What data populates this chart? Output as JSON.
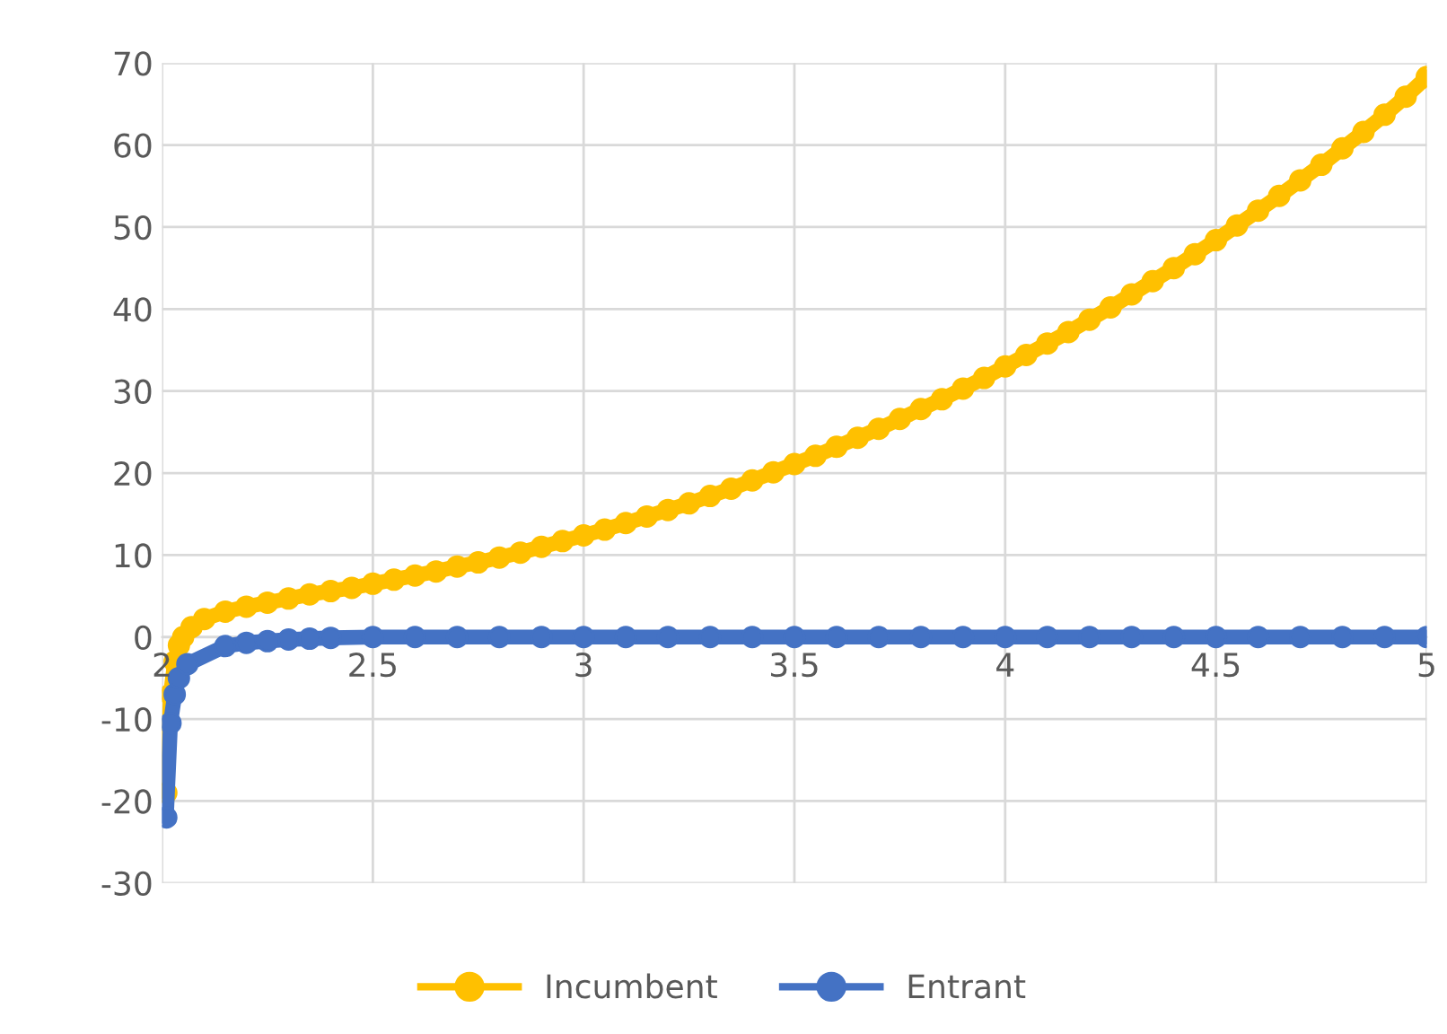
{
  "chart_data": {
    "type": "line",
    "xlim": [
      2,
      5
    ],
    "xticks": [
      2,
      2.5,
      3,
      3.5,
      4,
      4.5,
      5
    ],
    "ylim": [
      -30,
      70
    ],
    "yticks": [
      -30,
      -20,
      -10,
      0,
      10,
      20,
      30,
      40,
      50,
      60,
      70
    ],
    "grid": true,
    "legend": "bottom",
    "marker": "circle",
    "line_style": "solid",
    "series": [
      {
        "name": "Incumbent",
        "color": "#ffc000",
        "x": [
          2.01,
          2.02,
          2.03,
          2.04,
          2.05,
          2.07,
          2.1,
          2.15,
          2.2,
          2.25,
          2.3,
          2.35,
          2.4,
          2.45,
          2.5,
          2.55,
          2.6,
          2.65,
          2.7,
          2.75,
          2.8,
          2.85,
          2.9,
          2.95,
          3.0,
          3.05,
          3.1,
          3.15,
          3.2,
          3.25,
          3.3,
          3.35,
          3.4,
          3.45,
          3.5,
          3.55,
          3.6,
          3.65,
          3.7,
          3.75,
          3.8,
          3.85,
          3.9,
          3.95,
          4.0,
          4.05,
          4.1,
          4.15,
          4.2,
          4.25,
          4.3,
          4.35,
          4.4,
          4.45,
          4.5,
          4.55,
          4.6,
          4.65,
          4.7,
          4.75,
          4.8,
          4.85,
          4.9,
          4.95,
          5.0
        ],
        "values": [
          -19,
          -7,
          -3,
          -1,
          0,
          1.2,
          2.2,
          3.1,
          3.7,
          4.2,
          4.7,
          5.2,
          5.6,
          6.0,
          6.5,
          7.0,
          7.5,
          8.0,
          8.6,
          9.1,
          9.7,
          10.3,
          11.0,
          11.7,
          12.4,
          13.1,
          13.9,
          14.7,
          15.5,
          16.3,
          17.2,
          18.1,
          19.1,
          20.1,
          21.1,
          22.1,
          23.2,
          24.3,
          25.4,
          26.6,
          27.8,
          29.0,
          30.3,
          31.6,
          33.0,
          34.4,
          35.8,
          37.2,
          38.7,
          40.2,
          41.8,
          43.4,
          45.0,
          46.7,
          48.4,
          50.2,
          52.0,
          53.8,
          55.7,
          57.6,
          59.6,
          61.6,
          63.7,
          65.9,
          68.3
        ]
      },
      {
        "name": "Entrant",
        "color": "#4472c4",
        "x": [
          2.01,
          2.02,
          2.03,
          2.04,
          2.06,
          2.15,
          2.2,
          2.25,
          2.3,
          2.35,
          2.4,
          2.5,
          2.6,
          2.7,
          2.8,
          2.9,
          3.0,
          3.1,
          3.2,
          3.3,
          3.4,
          3.5,
          3.6,
          3.7,
          3.8,
          3.9,
          4.0,
          4.1,
          4.2,
          4.3,
          4.4,
          4.5,
          4.6,
          4.7,
          4.8,
          4.9,
          5.0
        ],
        "values": [
          -22,
          -10.5,
          -7,
          -5,
          -3.3,
          -1.1,
          -0.7,
          -0.5,
          -0.3,
          -0.2,
          -0.1,
          0,
          0,
          0,
          0,
          0,
          0,
          0,
          0,
          0,
          0,
          0,
          0,
          0,
          0,
          0,
          0,
          0,
          0,
          0,
          0,
          0,
          0,
          0,
          0,
          0,
          0
        ]
      }
    ]
  }
}
